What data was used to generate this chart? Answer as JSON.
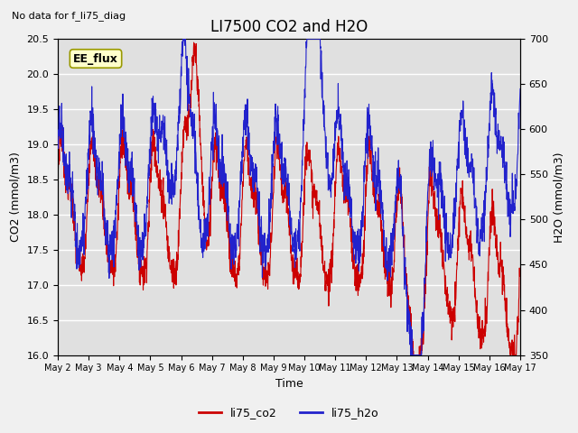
{
  "title": "LI7500 CO2 and H2O",
  "subtitle": "No data for f_li75_diag",
  "xlabel": "Time",
  "ylabel_left": "CO2 (mmol/m3)",
  "ylabel_right": "H2O (mmol/m3)",
  "xlim": [
    0,
    15
  ],
  "ylim_left": [
    16.0,
    20.5
  ],
  "ylim_right": [
    350,
    700
  ],
  "yticks_left": [
    16.0,
    16.5,
    17.0,
    17.5,
    18.0,
    18.5,
    19.0,
    19.5,
    20.0,
    20.5
  ],
  "yticks_right": [
    350,
    400,
    450,
    500,
    550,
    600,
    650,
    700
  ],
  "xtick_labels": [
    "May 2",
    "May 3",
    "May 4",
    "May 5",
    "May 6",
    "May 7",
    "May 8",
    "May 9",
    "May 10",
    "May 11",
    "May 12",
    "May 13",
    "May 14",
    "May 15",
    "May 16",
    "May 17"
  ],
  "legend_label_co2": "li75_co2",
  "legend_label_h2o": "li75_h2o",
  "annotation_text": "EE_flux",
  "color_co2": "#cc0000",
  "color_h2o": "#2222cc",
  "background_color": "#e0e0e0",
  "figure_background": "#f0f0f0"
}
